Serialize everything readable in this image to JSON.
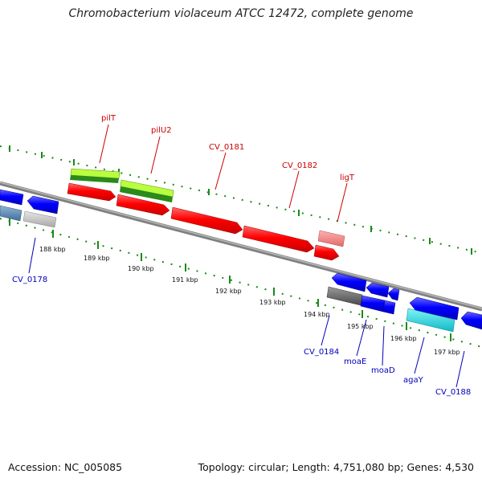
{
  "title": "Chromobacterium violaceum ATCC 12472, complete genome",
  "footer": {
    "accession": "Accession: NC_005085",
    "summary": "Topology: circular; Length: 4,751,080 bp; Genes: 4,530"
  },
  "colors": {
    "forward_label": "#cc0000",
    "reverse_label": "#0000bb",
    "gc_ticks": "#1a8a1a",
    "backbone": "#808080"
  },
  "forward_gene_labels": [
    "pilT",
    "pilU2",
    "CV_0181",
    "CV_0182",
    "ligT"
  ],
  "reverse_gene_labels": [
    "CV_0178",
    "CV_0184",
    "moaE",
    "moaD",
    "agaY",
    "CV_0188"
  ],
  "scale_labels": [
    "188 kbp",
    "189 kbp",
    "190 kbp",
    "191 kbp",
    "192 kbp",
    "193 kbp",
    "194 kbp",
    "195 kbp",
    "196 kbp",
    "197 kbp"
  ]
}
